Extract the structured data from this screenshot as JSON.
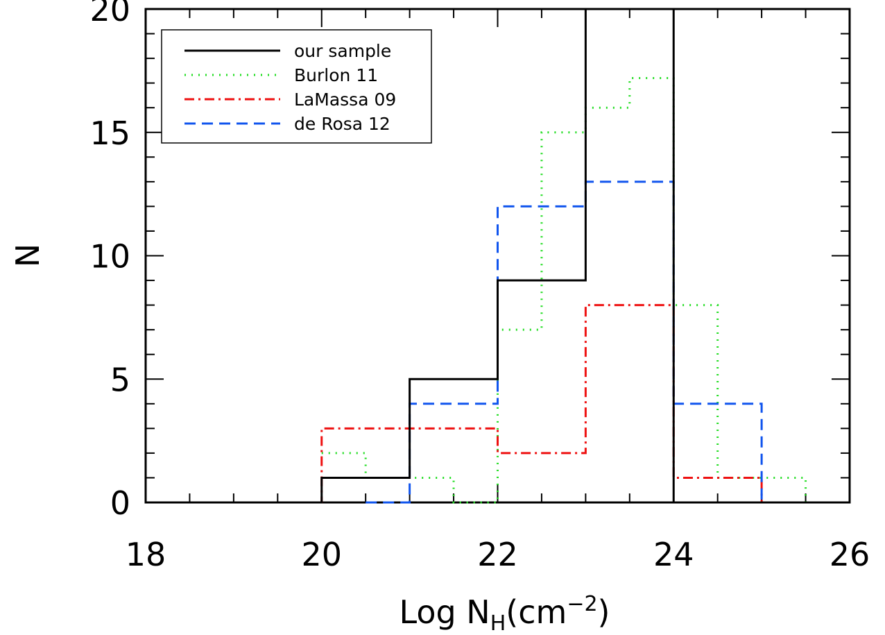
{
  "chart_data": {
    "type": "histogram",
    "title": "",
    "xlabel": {
      "main": "Log N",
      "subscript": "H",
      "unit_open": "(cm",
      "superscript": "−2",
      "unit_close": ")"
    },
    "ylabel": "N",
    "xlim": [
      18,
      26
    ],
    "ylim": [
      0,
      20
    ],
    "xticks": [
      18,
      20,
      22,
      24,
      26
    ],
    "yticks": [
      0,
      5,
      10,
      15,
      20
    ],
    "xtick_labels": [
      "18",
      "20",
      "22",
      "24",
      "26"
    ],
    "ytick_labels": [
      "0",
      "5",
      "10",
      "15",
      "20"
    ],
    "grid": false,
    "legend_position": "top-left",
    "series": [
      {
        "name": "our sample",
        "color": "#000000",
        "style": "solid",
        "bin_edges": [
          18,
          19,
          20,
          21,
          22,
          23,
          24,
          25,
          26
        ],
        "values": [
          0,
          0,
          1,
          5,
          9,
          20,
          0,
          0
        ]
      },
      {
        "name": "Burlon 11",
        "color": "#22dd22",
        "style": "dotted",
        "bin_edges": [
          20,
          20.5,
          21,
          21.5,
          22,
          22.5,
          23,
          23.5,
          24,
          24.5,
          25,
          25.5,
          25.75
        ],
        "values": [
          2,
          1,
          1,
          0,
          7,
          15,
          16,
          17.2,
          8,
          1,
          1,
          0
        ]
      },
      {
        "name": "LaMassa 09",
        "color": "#ee1111",
        "style": "dashdot",
        "bin_edges": [
          19.5,
          20,
          21,
          22,
          23,
          24,
          25,
          25.5
        ],
        "values": [
          0,
          3,
          3,
          2,
          8,
          1,
          0
        ]
      },
      {
        "name": "de Rosa 12",
        "color": "#1155ee",
        "style": "dashed",
        "bin_edges": [
          20.5,
          21,
          22,
          23,
          24,
          25,
          25.5
        ],
        "values": [
          0,
          4,
          12,
          13,
          4,
          0
        ]
      }
    ]
  }
}
